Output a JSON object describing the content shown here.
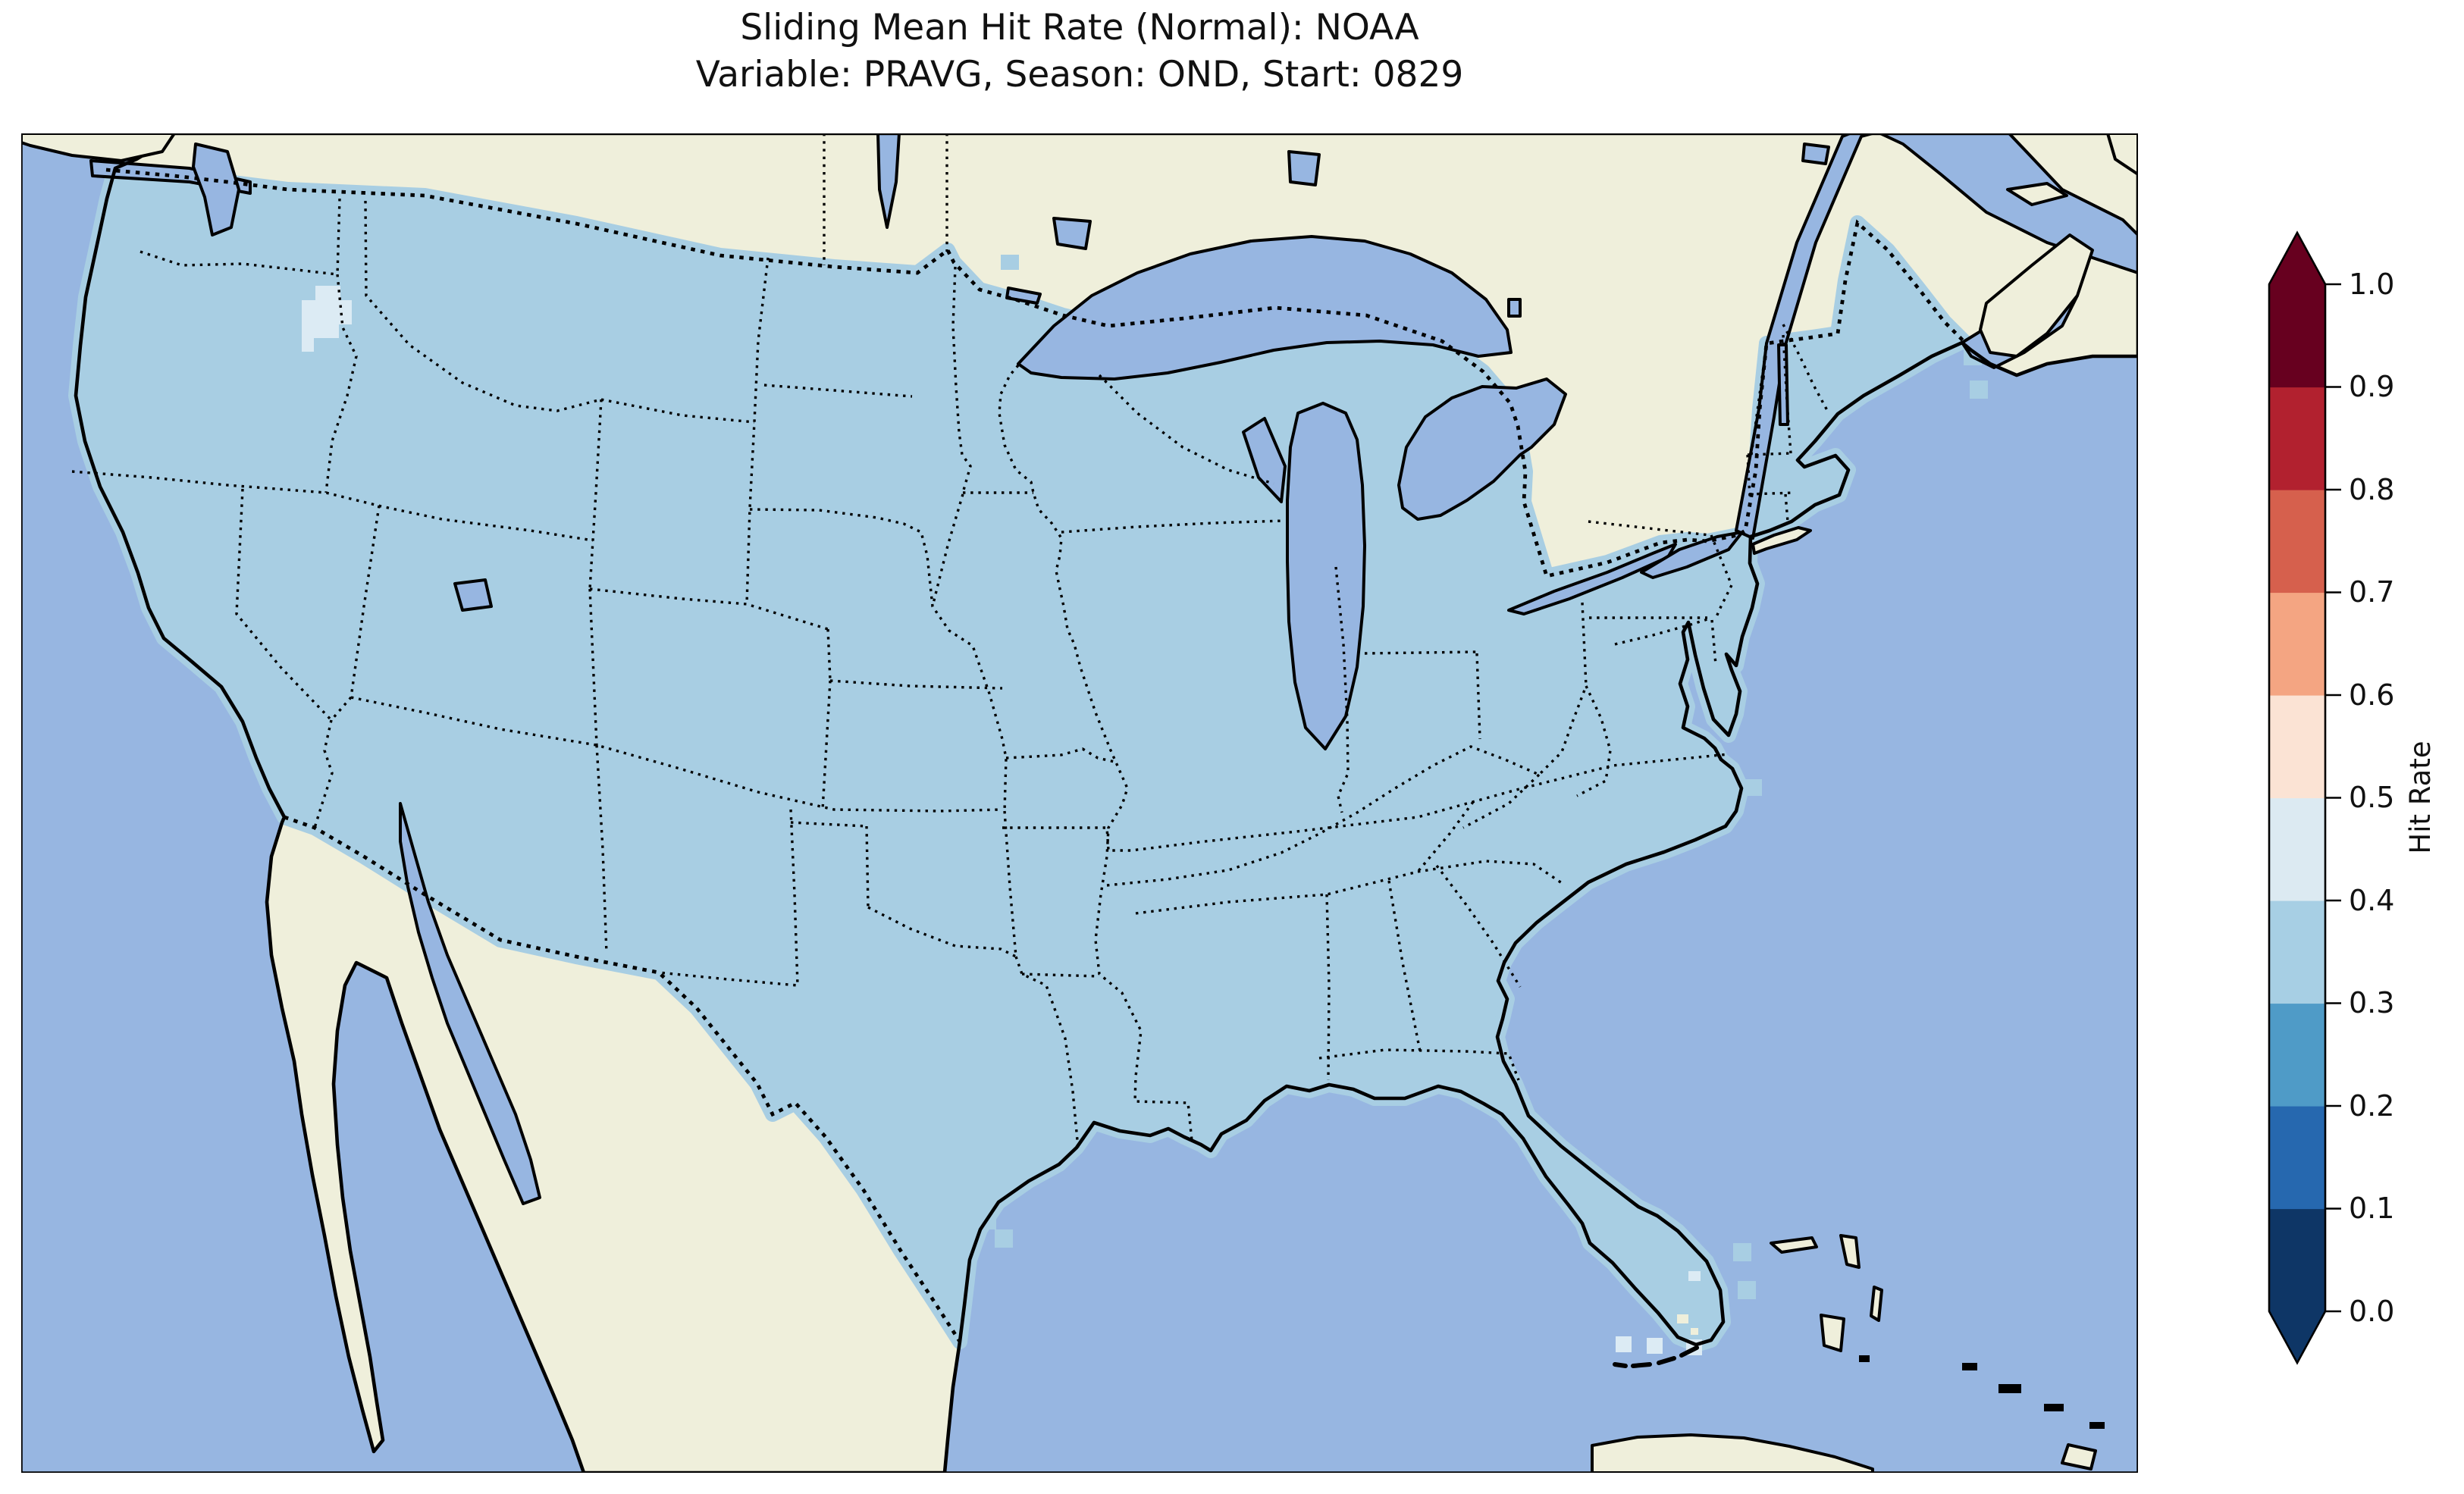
{
  "figure": {
    "title_line1": "Sliding Mean Hit Rate (Normal): NOAA",
    "title_line2": "Variable: PRAVG, Season: OND, Start: 0829",
    "source": "NOAA",
    "variable": "PRAVG",
    "season": "OND",
    "start": "0829",
    "metric": "Sliding Mean Hit Rate (Normal)"
  },
  "colorbar": {
    "label": "Hit Rate",
    "tick_labels": [
      "1.0",
      "0.9",
      "0.8",
      "0.7",
      "0.6",
      "0.5",
      "0.4",
      "0.3",
      "0.2",
      "0.1",
      "0.0"
    ],
    "range_min": 0.0,
    "range_max": 1.0,
    "bins": [
      {
        "range": "0.0-0.1",
        "color": "#0e3666"
      },
      {
        "range": "0.1-0.2",
        "color": "#2668af"
      },
      {
        "range": "0.2-0.3",
        "color": "#4f9bc7"
      },
      {
        "range": "0.3-0.4",
        "color": "#a7cfe4"
      },
      {
        "range": "0.4-0.5",
        "color": "#dceaf2"
      },
      {
        "range": "0.5-0.6",
        "color": "#fbe3d4"
      },
      {
        "range": "0.6-0.7",
        "color": "#f4a582"
      },
      {
        "range": "0.7-0.8",
        "color": "#d6604d"
      },
      {
        "range": "0.8-0.9",
        "color": "#b2212f"
      },
      {
        "range": "0.9-1.0",
        "color": "#67001f"
      }
    ],
    "extend_under_color": "#0e3666",
    "extend_over_color": "#67001f",
    "colormap": "RdBu discrete (10 bins), extended arrows both ends"
  },
  "map": {
    "ocean_color": "#97b6e1",
    "land_color": "#efefdb",
    "lake_color": "#97b6e1",
    "us_fill_color": "#a8cee3",
    "us_fill_bin": "0.3-0.4",
    "anomaly_patch_color": "#dcebf4",
    "anomaly_patch_bin": "0.4-0.5",
    "border_styles": {
      "states": "dotted black",
      "countries": "dashed black",
      "coastlines": "solid black"
    },
    "regions_visible": [
      "CONUS states",
      "Canada",
      "Mexico",
      "Baja California",
      "Great Lakes",
      "Gulf of Mexico",
      "Atlantic Ocean",
      "Pacific Ocean",
      "Gulf of St. Lawrence",
      "Nova Scotia",
      "Cuba",
      "Bahamas",
      "Florida Keys"
    ]
  },
  "chart_data": {
    "type": "heatmap",
    "title": "Sliding Mean Hit Rate (Normal): NOAA",
    "subtitle": "Variable: PRAVG, Season: OND, Start: 0829",
    "colorbar_label": "Hit Rate",
    "colorbar_ticks": [
      0.0,
      0.1,
      0.2,
      0.3,
      0.4,
      0.5,
      0.6,
      0.7,
      0.8,
      0.9,
      1.0
    ],
    "colorbar_bounds": [
      0.0,
      0.1,
      0.2,
      0.3,
      0.4,
      0.5,
      0.6,
      0.7,
      0.8,
      0.9,
      1.0
    ],
    "ylim": [
      0.0,
      1.0
    ],
    "legend_position": "right",
    "grid": "off",
    "series": [
      {
        "name": "CONUS gridded hit rate",
        "value_bin": "0.3-0.4",
        "coverage": "nearly all of the contiguous United States"
      },
      {
        "name": "SE Washington cluster",
        "value_bin": "0.4-0.5",
        "coverage": "small plus-shaped cluster of grid cells"
      },
      {
        "name": "Florida Keys cells",
        "value_bin": "0.4-0.5",
        "coverage": "three isolated offshore grid cells southwest of the Florida peninsula"
      }
    ],
    "values_summary": "Uniform light-blue field: hit rate between 0.3 and 0.4 over virtually the entire CONUS; a few 0.4-0.5 cells in southeast Washington and near the Florida Keys."
  }
}
